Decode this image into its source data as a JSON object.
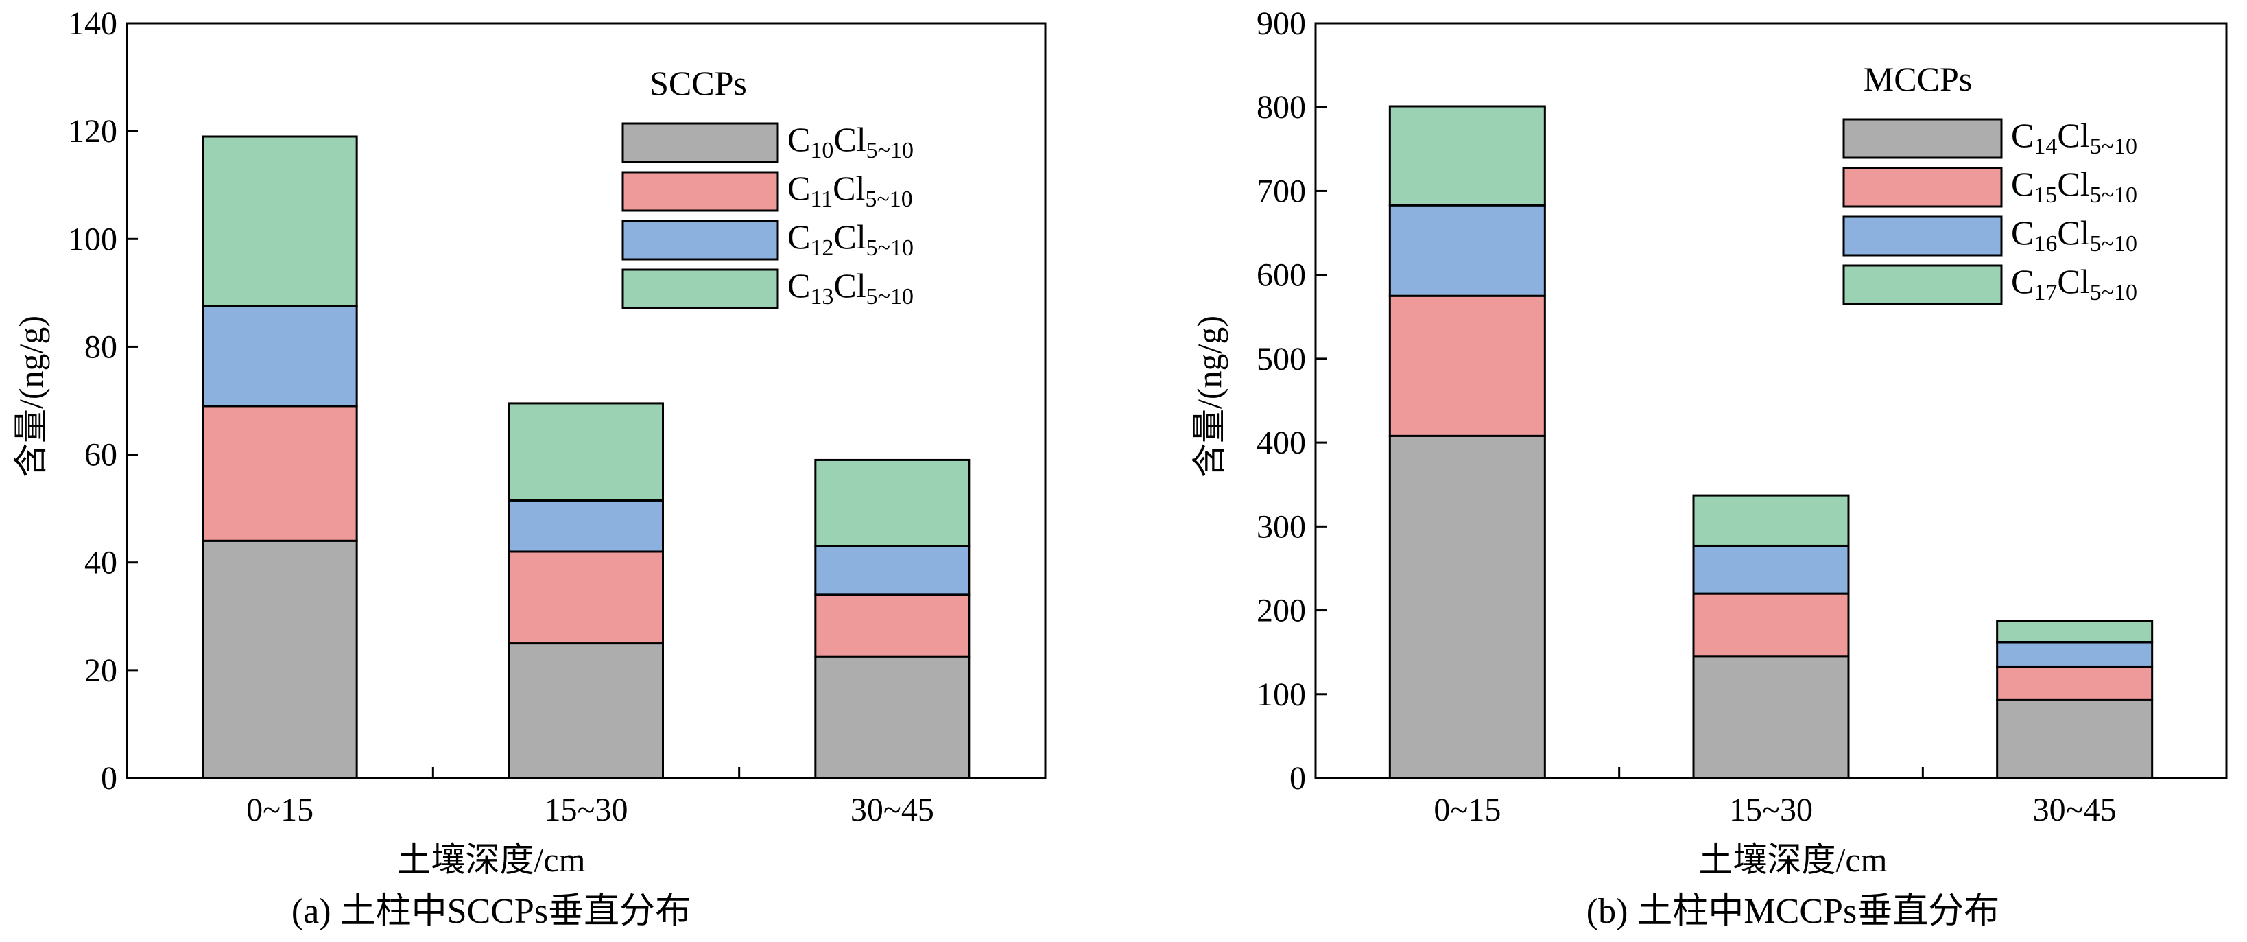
{
  "colors": {
    "series": [
      "#adadad",
      "#ef9a9a",
      "#8db1df",
      "#9cd2b4"
    ],
    "axis": "#000000",
    "background": "#ffffff"
  },
  "chart_data": [
    {
      "type": "bar",
      "stacked": true,
      "caption": "(a)  土柱中SCCPs垂直分布",
      "xlabel": "土壤深度/cm",
      "ylabel": "含量/(ng/g)",
      "categories": [
        "0~15",
        "15~30",
        "30~45"
      ],
      "ylim": [
        0,
        140
      ],
      "yticks": [
        0,
        20,
        40,
        60,
        80,
        100,
        120,
        140
      ],
      "legend_title": "SCCPs",
      "legend_position": "top-right",
      "series": [
        {
          "name": "C10Cl5~10",
          "label_main": "C",
          "label_sub1": "10",
          "label_mid": "Cl",
          "label_sub2": "5~10",
          "values": [
            44,
            25,
            22.5
          ]
        },
        {
          "name": "C11Cl5~10",
          "label_main": "C",
          "label_sub1": "11",
          "label_mid": "Cl",
          "label_sub2": "5~10",
          "values": [
            25,
            17,
            11.5
          ]
        },
        {
          "name": "C12Cl5~10",
          "label_main": "C",
          "label_sub1": "12",
          "label_mid": "Cl",
          "label_sub2": "5~10",
          "values": [
            18.5,
            9.5,
            9
          ]
        },
        {
          "name": "C13Cl5~10",
          "label_main": "C",
          "label_sub1": "13",
          "label_mid": "Cl",
          "label_sub2": "5~10",
          "values": [
            31.5,
            18,
            16
          ]
        }
      ]
    },
    {
      "type": "bar",
      "stacked": true,
      "caption": "(b)  土柱中MCCPs垂直分布",
      "xlabel": "土壤深度/cm",
      "ylabel": "含量/(ng/g)",
      "categories": [
        "0~15",
        "15~30",
        "30~45"
      ],
      "ylim": [
        0,
        900
      ],
      "yticks": [
        0,
        100,
        200,
        300,
        400,
        500,
        600,
        700,
        800,
        900
      ],
      "legend_title": "MCCPs",
      "legend_position": "top-right",
      "series": [
        {
          "name": "C14Cl5~10",
          "label_main": "C",
          "label_sub1": "14",
          "label_mid": "Cl",
          "label_sub2": "5~10",
          "values": [
            408,
            145,
            93
          ]
        },
        {
          "name": "C15Cl5~10",
          "label_main": "C",
          "label_sub1": "15",
          "label_mid": "Cl",
          "label_sub2": "5~10",
          "values": [
            167,
            75,
            40
          ]
        },
        {
          "name": "C16Cl5~10",
          "label_main": "C",
          "label_sub1": "16",
          "label_mid": "Cl",
          "label_sub2": "5~10",
          "values": [
            108,
            57,
            29
          ]
        },
        {
          "name": "C17Cl5~10",
          "label_main": "C",
          "label_sub1": "17",
          "label_mid": "Cl",
          "label_sub2": "5~10",
          "values": [
            118,
            60,
            25
          ]
        }
      ]
    }
  ]
}
